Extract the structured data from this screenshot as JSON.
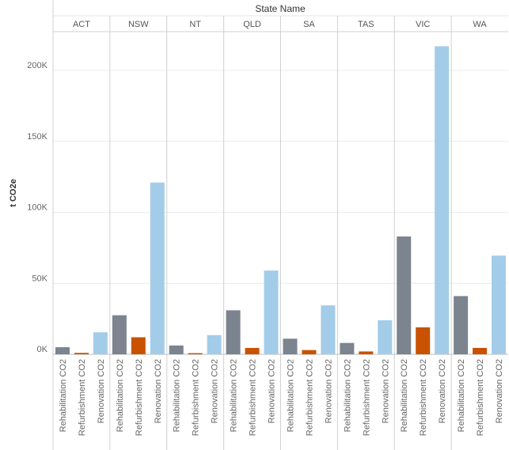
{
  "chart_data": {
    "type": "bar",
    "column_header": "State Name",
    "ylabel": "t CO2e",
    "ylim": [
      0,
      230000
    ],
    "grid": true,
    "y_ticks": [
      {
        "value": 0,
        "label": "0K"
      },
      {
        "value": 50000,
        "label": "50K"
      },
      {
        "value": 100000,
        "label": "100K"
      },
      {
        "value": 150000,
        "label": "150K"
      },
      {
        "value": 200000,
        "label": "200K"
      }
    ],
    "groups": [
      "ACT",
      "NSW",
      "NT",
      "QLD",
      "SA",
      "TAS",
      "VIC",
      "WA"
    ],
    "categories": [
      "Rehabilitation CO2",
      "Refurbishment CO2",
      "Renovation CO2"
    ],
    "colors": {
      "Rehabilitation CO2": "#7b848f",
      "Refurbishment CO2": "#c85200",
      "Renovation CO2": "#a3cce9"
    },
    "values": [
      [
        5000,
        1000,
        15500
      ],
      [
        27500,
        12000,
        121000
      ],
      [
        6200,
        800,
        13500
      ],
      [
        31000,
        4500,
        59000
      ],
      [
        11000,
        3000,
        34500
      ],
      [
        8000,
        2000,
        24000
      ],
      [
        83000,
        19000,
        217000
      ],
      [
        41000,
        4500,
        69500
      ]
    ]
  }
}
